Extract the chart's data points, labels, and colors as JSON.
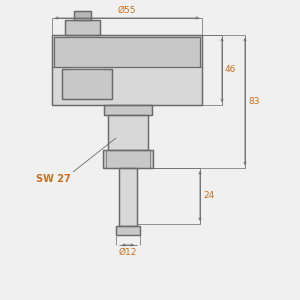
{
  "bg_color": "#f0f0f0",
  "line_color": "#6a6a6a",
  "fill_light": "#d8d8d8",
  "fill_mid": "#c8c8c8",
  "fill_dark": "#b8b8b8",
  "orange_color": "#c87020",
  "dims": {
    "phi55": "Ø55",
    "phi12": "Ø12",
    "dim46": "46",
    "dim83": "83",
    "dim24": "24",
    "sw27": "SW 27"
  },
  "figsize": [
    3.0,
    3.0
  ],
  "dpi": 100
}
